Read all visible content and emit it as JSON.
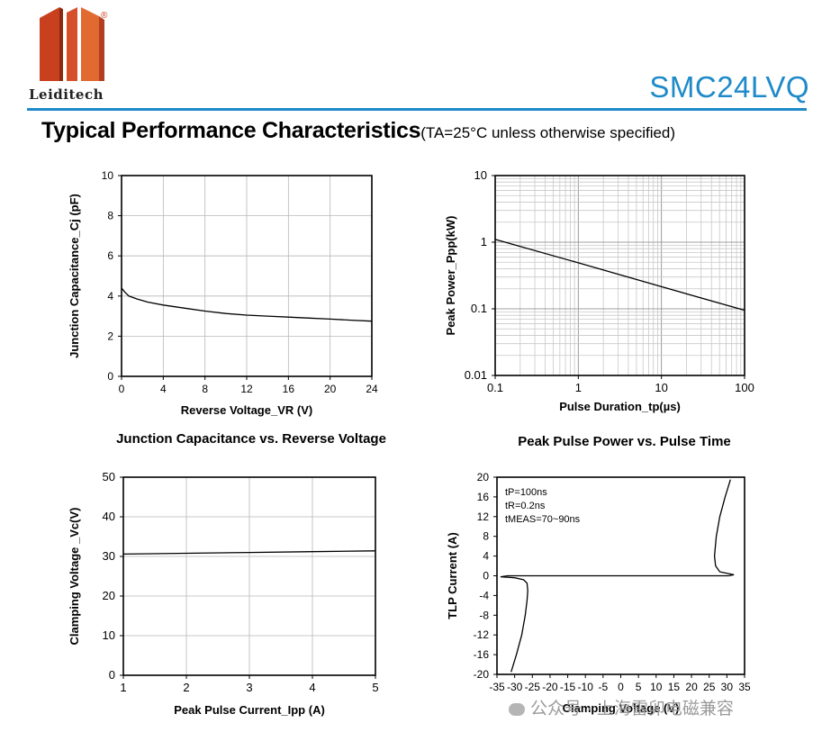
{
  "header": {
    "brand_name": "Leiditech",
    "brand_mark": "®",
    "part_number": "SMC24LVQ",
    "section_title": "Typical Performance Characteristics",
    "conditions": "(TA=25°C unless otherwise specified)",
    "colors": {
      "accent": "#1e8ac8",
      "logo_red": "#c8401e",
      "logo_orange": "#e06a30"
    }
  },
  "watermark": "公众号 · 上海雷卯电磁兼容",
  "chart_data": [
    {
      "id": "cap",
      "type": "line",
      "title": "Junction Capacitance vs. Reverse Voltage",
      "xlabel": "Reverse Voltage_VR (V)",
      "ylabel": "Junction Capacitance_Cj (pF)",
      "xlim": [
        0,
        24
      ],
      "ylim": [
        0,
        10
      ],
      "xticks": [
        0,
        4,
        8,
        12,
        16,
        20,
        24
      ],
      "yticks": [
        0,
        2,
        4,
        6,
        8,
        10
      ],
      "grid": true,
      "series": [
        {
          "x": [
            0,
            0.3,
            0.7,
            1.5,
            2.5,
            4,
            6,
            8,
            10,
            12,
            14,
            16,
            18,
            20,
            22,
            24
          ],
          "y": [
            4.4,
            4.2,
            4.0,
            3.85,
            3.7,
            3.55,
            3.4,
            3.25,
            3.13,
            3.05,
            3.0,
            2.95,
            2.9,
            2.85,
            2.8,
            2.75
          ]
        }
      ]
    },
    {
      "id": "ppp",
      "type": "line",
      "title": "Peak Pulse Power vs. Pulse Time",
      "xlabel": "Pulse Duration_tp(µs)",
      "ylabel": "Peak  Power_Ppp(kW)",
      "xscale": "log",
      "yscale": "log",
      "xlim": [
        0.1,
        100
      ],
      "ylim": [
        0.01,
        10
      ],
      "xticks": [
        0.1,
        1,
        10,
        100
      ],
      "xticklabels": [
        "0.1",
        "1",
        "10",
        "100"
      ],
      "yticks": [
        0.01,
        0.1,
        1,
        10
      ],
      "yticklabels": [
        "0.01",
        "0.1",
        "1",
        "10"
      ],
      "grid": true,
      "series": [
        {
          "x": [
            0.1,
            1,
            10,
            100
          ],
          "y": [
            1.1,
            0.49,
            0.215,
            0.095
          ]
        }
      ]
    },
    {
      "id": "vc",
      "type": "line",
      "title": "",
      "xlabel": "Peak Pulse Current_Ipp (A)",
      "ylabel": "Clamping Voltage _Vc(V)",
      "xlim": [
        1,
        5
      ],
      "ylim": [
        0,
        50
      ],
      "xticks": [
        1,
        2,
        3,
        4,
        5
      ],
      "yticks": [
        0,
        10,
        20,
        30,
        40,
        50
      ],
      "grid": true,
      "series": [
        {
          "x": [
            1,
            2,
            3,
            4,
            5
          ],
          "y": [
            30.6,
            30.8,
            31.0,
            31.2,
            31.4
          ]
        }
      ]
    },
    {
      "id": "tlp",
      "type": "line",
      "title": "",
      "xlabel": "Clamping Voltage (V)",
      "ylabel": "TLP Current (A)",
      "xlim": [
        -35,
        35
      ],
      "ylim": [
        -20,
        20
      ],
      "xticks": [
        -35,
        -30,
        -25,
        -20,
        -15,
        -10,
        -5,
        0,
        5,
        10,
        15,
        20,
        25,
        30,
        35
      ],
      "yticks": [
        -20,
        -16,
        -12,
        -8,
        -4,
        0,
        4,
        8,
        12,
        16,
        20
      ],
      "grid": false,
      "annotations": [
        "tP=100ns",
        "tR=0.2ns",
        "tMEAS=70~90ns"
      ],
      "series": [
        {
          "x": [
            -31,
            -29.5,
            -28,
            -27,
            -26.5,
            -26.3,
            -26.5,
            -27.5,
            -30,
            -34,
            -32,
            -10,
            10,
            30.5,
            32,
            28,
            26.8,
            26.5,
            27,
            28,
            29.5,
            31
          ],
          "y": [
            -19.5,
            -16,
            -12,
            -8,
            -5,
            -3,
            -1.5,
            -0.8,
            -0.4,
            -0.2,
            0,
            0,
            0,
            0,
            0.2,
            0.8,
            2,
            4,
            8,
            12,
            16,
            19.5
          ]
        }
      ]
    }
  ]
}
